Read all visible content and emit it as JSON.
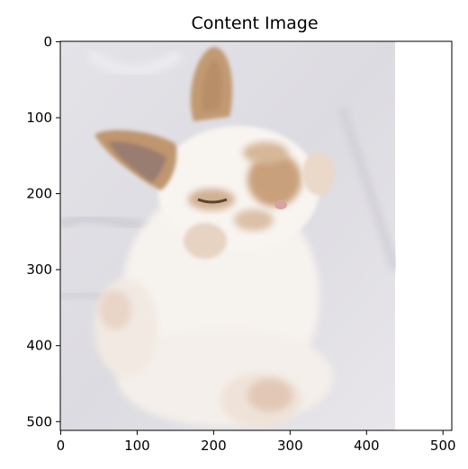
{
  "chart_data": {
    "type": "image",
    "title": "Content Image",
    "xlabel": "",
    "ylabel": "",
    "xlim": [
      0,
      511
    ],
    "ylim": [
      511,
      0
    ],
    "image_extent": {
      "x": [
        0,
        438
      ],
      "y": [
        0,
        511
      ]
    },
    "image_content": "white and light-brown baby bunny lying on its back on a pale grey cloth",
    "xticks": [
      0,
      100,
      200,
      300,
      400,
      500
    ],
    "yticks": [
      0,
      100,
      200,
      300,
      400,
      500
    ],
    "xtick_labels": [
      "0",
      "100",
      "200",
      "300",
      "400",
      "500"
    ],
    "ytick_labels": [
      "0",
      "100",
      "200",
      "300",
      "400",
      "500"
    ],
    "grid": false
  },
  "colors": {
    "axes": "#000000",
    "cloth": "#dedde3",
    "fur": "#f7f2ec",
    "ear_brown": "#b58a63",
    "ear_inner": "#9a7a73"
  }
}
